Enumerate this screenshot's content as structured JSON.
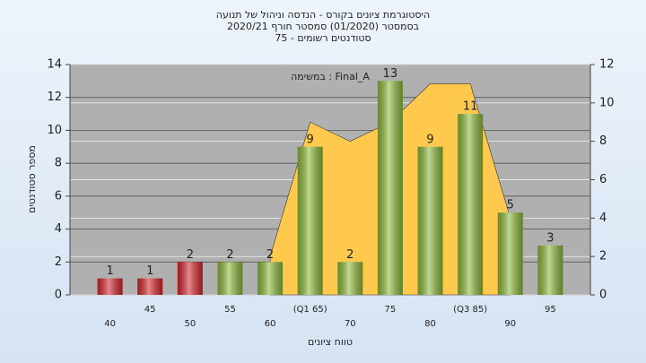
{
  "chart_data": {
    "type": "bar",
    "title_lines": [
      "היסטוגרמת ציונים בקורס - הנדסה וניהול של תנועה",
      "בסמסטר  (01/2020)  סמסטר חורף  2020/21",
      "סטודנטים רשומים - 75"
    ],
    "annotation": "במשימה : Final_A",
    "xlabel": "טווח ציונים",
    "ylabel": "מספר סטודנטים",
    "categories": [
      "40",
      "45",
      "50",
      "55",
      "60",
      "(Q1 65)",
      "70",
      "75",
      "80",
      "(Q3 85)",
      "90",
      "95"
    ],
    "series": [
      {
        "type": "area",
        "axis": "y2",
        "color": "#ffc94d",
        "values": [
          null,
          null,
          null,
          null,
          2,
          9,
          8,
          9,
          11,
          11,
          4,
          null
        ]
      },
      {
        "type": "bar",
        "values": [
          1,
          1,
          2,
          2,
          2,
          9,
          2,
          13,
          9,
          11,
          5,
          3
        ],
        "colors": [
          "#d8262c",
          "#d8262c",
          "#d8262c",
          "#8dbb3a",
          "#8dbb3a",
          "#8dbb3a",
          "#8dbb3a",
          "#8dbb3a",
          "#8dbb3a",
          "#8dbb3a",
          "#8dbb3a",
          "#8dbb3a"
        ]
      }
    ],
    "ylim": [
      0,
      14
    ],
    "yticks": [
      0,
      2,
      4,
      6,
      8,
      10,
      12,
      14
    ],
    "y2lim": [
      0,
      12
    ],
    "y2ticks": [
      0,
      2,
      4,
      6,
      8,
      10,
      12
    ],
    "grid": true
  }
}
